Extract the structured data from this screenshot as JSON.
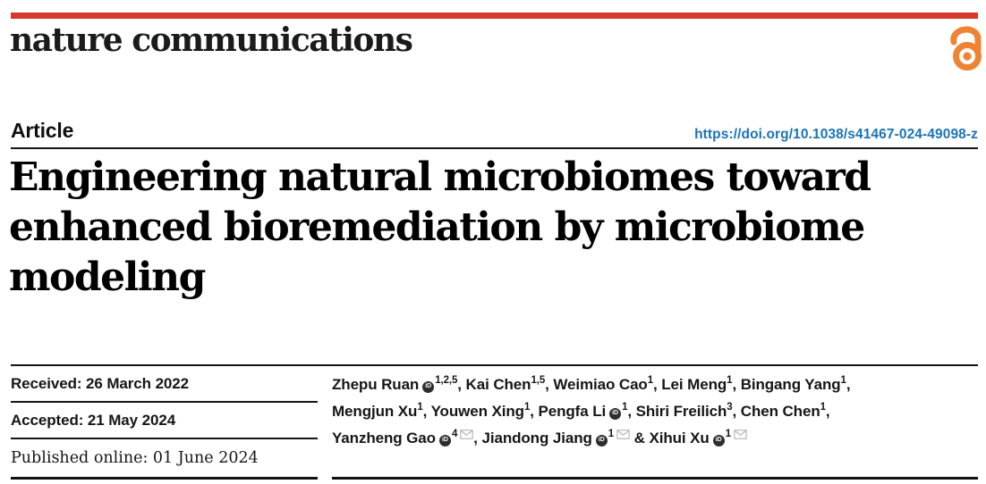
{
  "brand": {
    "logo_text": "nature communications",
    "bar_color": "#d7382d",
    "open_access_icon": "open-access-padlock",
    "open_access_color": "#ee8433"
  },
  "header": {
    "article_label": "Article",
    "doi_link": "https://doi.org/10.1038/s41467-024-49098-z",
    "doi_color": "#1a73b8"
  },
  "title": {
    "lines": [
      "Engineering natural microbiomes toward",
      "enhanced bioremediation by microbiome",
      "modeling"
    ]
  },
  "dates": {
    "rows": [
      {
        "label": "Received: 26 March 2022",
        "font": "sans"
      },
      {
        "label": "Accepted: 21 May 2024",
        "font": "sans"
      },
      {
        "label": "Published online: 01 June 2024",
        "font": "serif"
      }
    ]
  },
  "authors": {
    "orcid_icon_label": "iD",
    "lines": [
      [
        {
          "name": "Zhepu Ruan",
          "orcid": true,
          "sup": "1,2,5",
          "after": ", "
        },
        {
          "name": "Kai Chen",
          "sup": "1,5",
          "after": ", "
        },
        {
          "name": "Weimiao Cao",
          "sup": "1",
          "after": ", "
        },
        {
          "name": "Lei Meng",
          "sup": "1",
          "after": ", "
        },
        {
          "name": "Bingang Yang",
          "sup": "1",
          "after": ","
        }
      ],
      [
        {
          "name": "Mengjun Xu",
          "sup": "1",
          "after": ", "
        },
        {
          "name": "Youwen Xing",
          "sup": "1",
          "after": ", "
        },
        {
          "name": "Pengfa Li",
          "orcid": true,
          "sup": "1",
          "after": ", "
        },
        {
          "name": "Shiri Freilich",
          "sup": "3",
          "after": ", "
        },
        {
          "name": "Chen Chen",
          "sup": "1",
          "after": ","
        }
      ],
      [
        {
          "name": "Yanzheng Gao",
          "orcid": true,
          "sup": "4",
          "email": true,
          "after": ", "
        },
        {
          "name": "Jiandong Jiang",
          "orcid": true,
          "sup": "1",
          "email": true,
          "after": " & "
        },
        {
          "name": "Xihui Xu",
          "orcid": true,
          "sup": "1",
          "email": true,
          "after": ""
        }
      ]
    ]
  }
}
